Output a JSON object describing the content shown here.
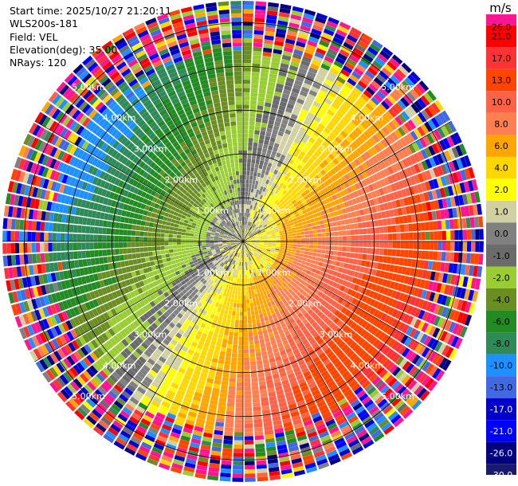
{
  "header": {
    "start_time": "Start time: 2025/10/27 21:20:11",
    "instrument": "WLS200s-181",
    "field": "Field: VEL",
    "elevation": "Elevation(deg): 35.00",
    "nrays": "NRays: 120"
  },
  "colorbar": {
    "unit": "m/s",
    "ticks": [
      "26.0",
      "21.0",
      "17.0",
      "13.0",
      "10.0",
      "8.0",
      "6.0",
      "4.0",
      "2.0",
      "1.0",
      "0.0",
      "-1.0",
      "-2.0",
      "-4.0",
      "-6.0",
      "-8.0",
      "-10.0",
      "-13.0",
      "-17.0",
      "-21.0",
      "-26.0",
      "-30.0"
    ],
    "colors": [
      "#ff1493",
      "#ff0000",
      "#ff3333",
      "#ff4500",
      "#ff6347",
      "#ff7f50",
      "#ffa500",
      "#ffd700",
      "#ffff00",
      "#d0d0a0",
      "#808080",
      "#6b6b6b",
      "#9acd32",
      "#6b8e23",
      "#228b22",
      "#2e8b57",
      "#1e90ff",
      "#4169e1",
      "#0000cd",
      "#0000ff",
      "#000080",
      "#191970"
    ]
  },
  "chart_data": {
    "type": "heatmap",
    "subtype": "ppi-polar",
    "field": "VEL",
    "units": "m/s",
    "elevation_deg": 35.0,
    "n_rays": 120,
    "range_rings_km": [
      1,
      2,
      3,
      4,
      5
    ],
    "ring_labels": [
      "1.00km",
      "2.00km",
      "3.00km",
      "4.00km",
      "5.00km"
    ],
    "max_range_km": 5.5,
    "value_range": [
      -30,
      26
    ],
    "pattern": {
      "description": "near-field (< ~4.3 km): receding flow (+2 to +17 m/s) from roughly azimuth 60-200 deg (east/south-east), approaching flow (-2 to -8 m/s) from roughly azimuth 250-60 deg (west/north); outer ring (> ~4.5 km) is noise spanning the full color range",
      "positive_sector_center_deg": 120,
      "negative_sector_center_deg": 330,
      "noise_start_km": 4.4
    }
  }
}
